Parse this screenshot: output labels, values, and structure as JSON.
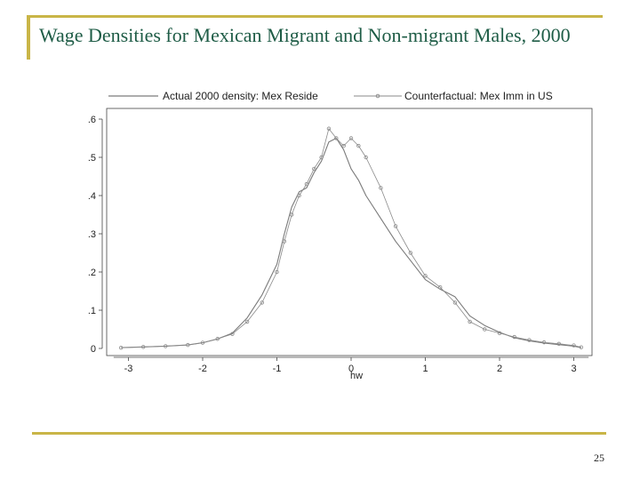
{
  "slide": {
    "title": "Wage Densities for Mexican Migrant and Non-migrant Males, 2000",
    "page_number": "25"
  },
  "colors": {
    "accent": "#c9b547",
    "title": "#1e5c46",
    "series_line": "#7a7a7a",
    "series_markers": "#8a8a8a"
  },
  "chart_data": {
    "type": "line",
    "title": "",
    "xlabel": "hw",
    "ylabel": "",
    "xlim": [
      -3.2,
      3.2
    ],
    "ylim": [
      0,
      0.6
    ],
    "x_ticks": [
      -3,
      -2,
      -1,
      0,
      1,
      2,
      3
    ],
    "x_tick_labels": [
      "-3",
      "-2",
      "-1",
      "0",
      "1",
      "2",
      "3"
    ],
    "y_ticks": [
      0,
      0.1,
      0.2,
      0.3,
      0.4,
      0.5,
      0.6
    ],
    "y_tick_labels": [
      "0",
      ".1",
      ".2",
      ".3",
      ".4",
      ".5",
      ".6"
    ],
    "grid": false,
    "legend_position": "top",
    "series": [
      {
        "name": "Actual 2000 density: Mex Reside",
        "style": "line",
        "x": [
          -3.1,
          -2.8,
          -2.5,
          -2.2,
          -2.0,
          -1.8,
          -1.6,
          -1.4,
          -1.2,
          -1.0,
          -0.9,
          -0.8,
          -0.7,
          -0.6,
          -0.5,
          -0.4,
          -0.3,
          -0.2,
          -0.1,
          0.0,
          0.1,
          0.2,
          0.4,
          0.6,
          0.8,
          1.0,
          1.2,
          1.4,
          1.6,
          1.8,
          2.0,
          2.2,
          2.4,
          2.6,
          2.8,
          3.0,
          3.1
        ],
        "y": [
          0.002,
          0.004,
          0.006,
          0.009,
          0.015,
          0.025,
          0.04,
          0.08,
          0.14,
          0.22,
          0.3,
          0.37,
          0.41,
          0.42,
          0.46,
          0.49,
          0.54,
          0.55,
          0.52,
          0.47,
          0.44,
          0.4,
          0.34,
          0.28,
          0.23,
          0.18,
          0.155,
          0.135,
          0.085,
          0.06,
          0.042,
          0.028,
          0.02,
          0.014,
          0.01,
          0.006,
          0.002
        ]
      },
      {
        "name": "Counterfactual: Mex Imm in US",
        "style": "markers-line",
        "x": [
          -3.1,
          -2.8,
          -2.5,
          -2.2,
          -2.0,
          -1.8,
          -1.6,
          -1.4,
          -1.2,
          -1.0,
          -0.9,
          -0.8,
          -0.7,
          -0.6,
          -0.5,
          -0.4,
          -0.3,
          -0.2,
          -0.1,
          0.0,
          0.1,
          0.2,
          0.4,
          0.6,
          0.8,
          1.0,
          1.2,
          1.4,
          1.6,
          1.8,
          2.0,
          2.2,
          2.4,
          2.6,
          2.8,
          3.0,
          3.1
        ],
        "y": [
          0.002,
          0.004,
          0.006,
          0.009,
          0.015,
          0.025,
          0.038,
          0.07,
          0.12,
          0.2,
          0.28,
          0.35,
          0.4,
          0.43,
          0.47,
          0.5,
          0.575,
          0.55,
          0.53,
          0.55,
          0.53,
          0.5,
          0.42,
          0.32,
          0.25,
          0.19,
          0.16,
          0.12,
          0.07,
          0.05,
          0.04,
          0.03,
          0.022,
          0.016,
          0.012,
          0.008,
          0.003
        ]
      }
    ]
  }
}
